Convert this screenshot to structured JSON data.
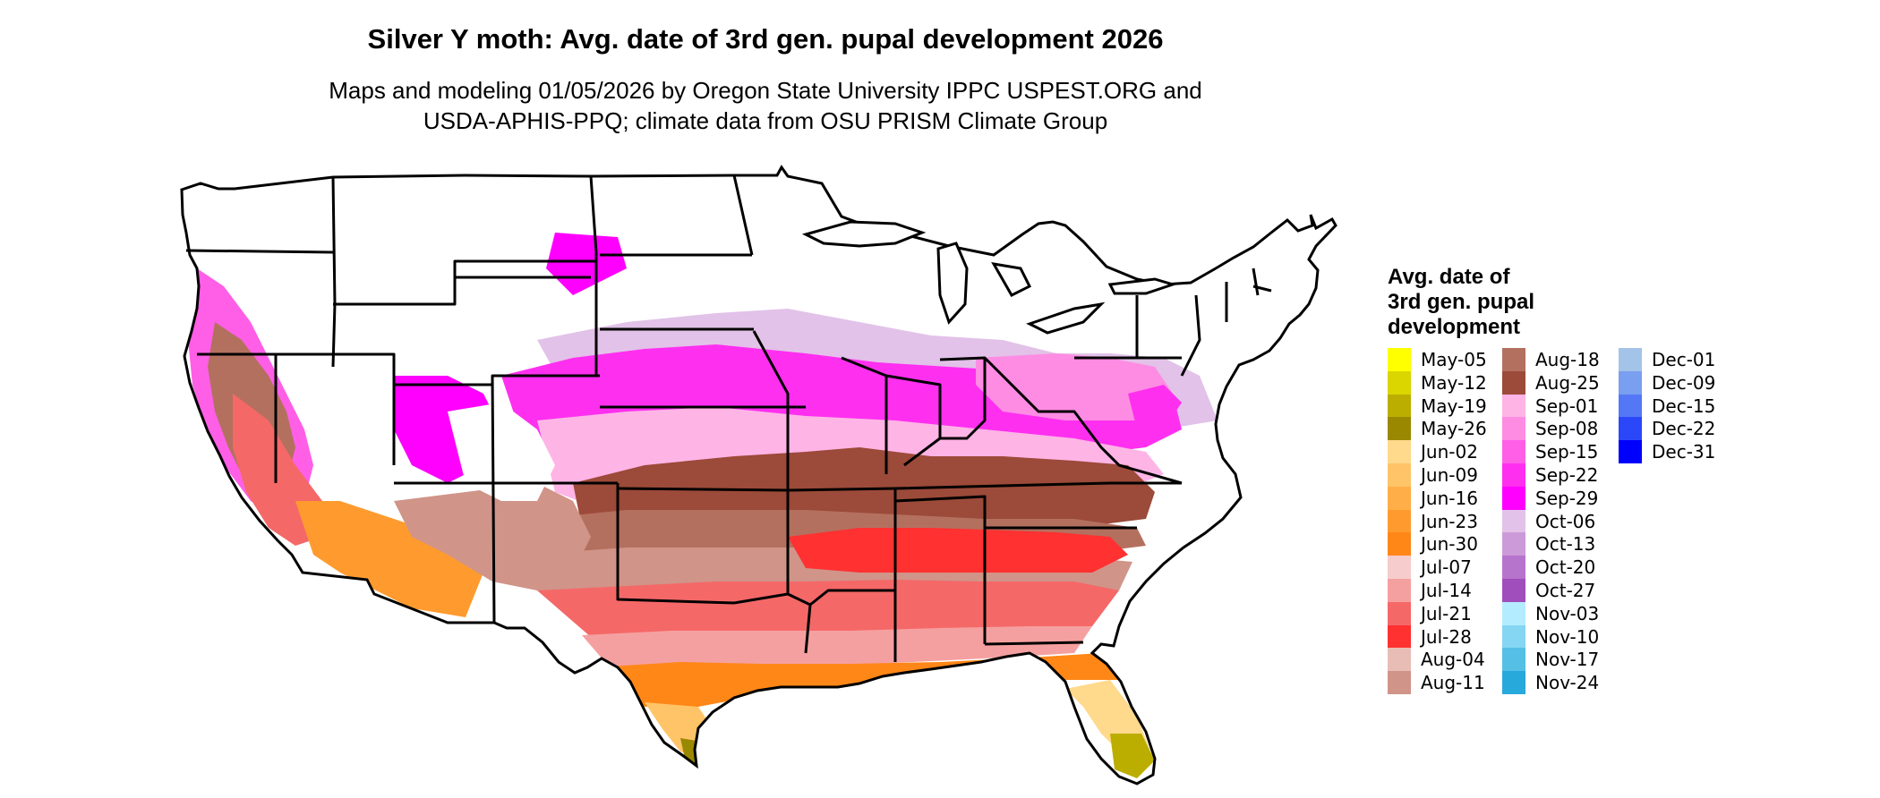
{
  "title": "Silver Y moth: Avg. date of 3rd gen. pupal development 2026",
  "subtitle_lines": [
    "Maps and modeling 01/05/2026 by Oregon State University IPPC USPEST.ORG and",
    "USDA-APHIS-PPQ; climate data from OSU PRISM Climate Group"
  ],
  "legend": {
    "title_lines": [
      "Avg. date of",
      "3rd gen. pupal",
      "development"
    ],
    "columns": [
      [
        {
          "label": "May-05",
          "color": "#ffff00"
        },
        {
          "label": "May-12",
          "color": "#dbd500"
        },
        {
          "label": "May-19",
          "color": "#bcae00"
        },
        {
          "label": "May-26",
          "color": "#9a8800"
        },
        {
          "label": "Jun-02",
          "color": "#ffd98c"
        },
        {
          "label": "Jun-09",
          "color": "#ffc467"
        },
        {
          "label": "Jun-16",
          "color": "#ffae48"
        },
        {
          "label": "Jun-23",
          "color": "#ff9b2e"
        },
        {
          "label": "Jun-30",
          "color": "#ff8717"
        },
        {
          "label": "Jul-07",
          "color": "#f7cccc"
        },
        {
          "label": "Jul-14",
          "color": "#f5a0a0"
        },
        {
          "label": "Jul-21",
          "color": "#f56868"
        },
        {
          "label": "Jul-28",
          "color": "#ff3131"
        },
        {
          "label": "Aug-04",
          "color": "#e8bdb6"
        },
        {
          "label": "Aug-11",
          "color": "#d09489"
        }
      ],
      [
        {
          "label": "Aug-18",
          "color": "#b4705f"
        },
        {
          "label": "Aug-25",
          "color": "#9c4a39"
        },
        {
          "label": "Sep-01",
          "color": "#ffb4e6"
        },
        {
          "label": "Sep-08",
          "color": "#ff8ce3"
        },
        {
          "label": "Sep-15",
          "color": "#ff5fe6"
        },
        {
          "label": "Sep-22",
          "color": "#ff2ff0"
        },
        {
          "label": "Sep-29",
          "color": "#ff00ff"
        },
        {
          "label": "Oct-06",
          "color": "#e2c2e8"
        },
        {
          "label": "Oct-13",
          "color": "#cc9ad9"
        },
        {
          "label": "Oct-20",
          "color": "#b774cc"
        },
        {
          "label": "Oct-27",
          "color": "#a04ebc"
        },
        {
          "label": "Nov-03",
          "color": "#b4ecff"
        },
        {
          "label": "Nov-10",
          "color": "#84d6f2"
        },
        {
          "label": "Nov-17",
          "color": "#56bfe6"
        },
        {
          "label": "Nov-24",
          "color": "#28a9dc"
        }
      ],
      [
        {
          "label": "Dec-01",
          "color": "#a3c3e8"
        },
        {
          "label": "Dec-09",
          "color": "#7a9ef0"
        },
        {
          "label": "Dec-15",
          "color": "#5478f5"
        },
        {
          "label": "Dec-22",
          "color": "#2c47fa"
        },
        {
          "label": "Dec-31",
          "color": "#0000ff"
        }
      ]
    ]
  }
}
